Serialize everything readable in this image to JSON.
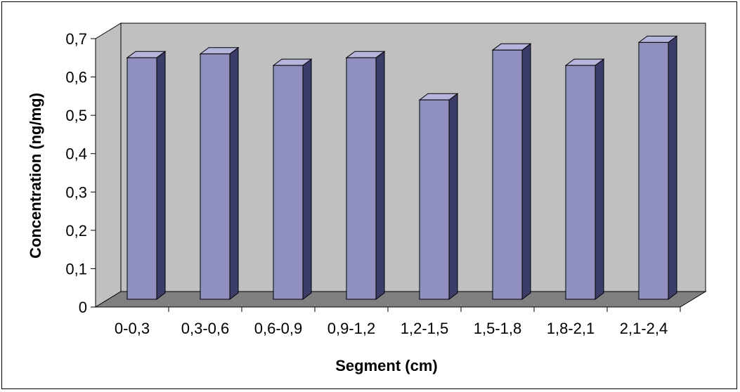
{
  "chart_data": {
    "type": "bar",
    "style": "3d-column",
    "categories": [
      "0-0,3",
      "0,3-0,6",
      "0,6-0,9",
      "0,9-1,2",
      "1,2-1,5",
      "1,5-1,8",
      "1,8-2,1",
      "2,1-2,4"
    ],
    "values": [
      0.63,
      0.64,
      0.61,
      0.63,
      0.52,
      0.65,
      0.61,
      0.67
    ],
    "title": "",
    "xlabel": "Segment (cm)",
    "ylabel": "Concentration (ng/mg)",
    "ylim": [
      0,
      0.7
    ],
    "yticks": [
      "0",
      "0,1",
      "0,2",
      "0,3",
      "0,4",
      "0,5",
      "0,6",
      "0,7"
    ],
    "grid": false,
    "legend": "none",
    "colors": {
      "bar_front": "#9090c0",
      "bar_top": "#b4b4dc",
      "bar_side": "#3c3c68",
      "back_wall": "#c0c0c0",
      "floor": "#808080"
    }
  }
}
